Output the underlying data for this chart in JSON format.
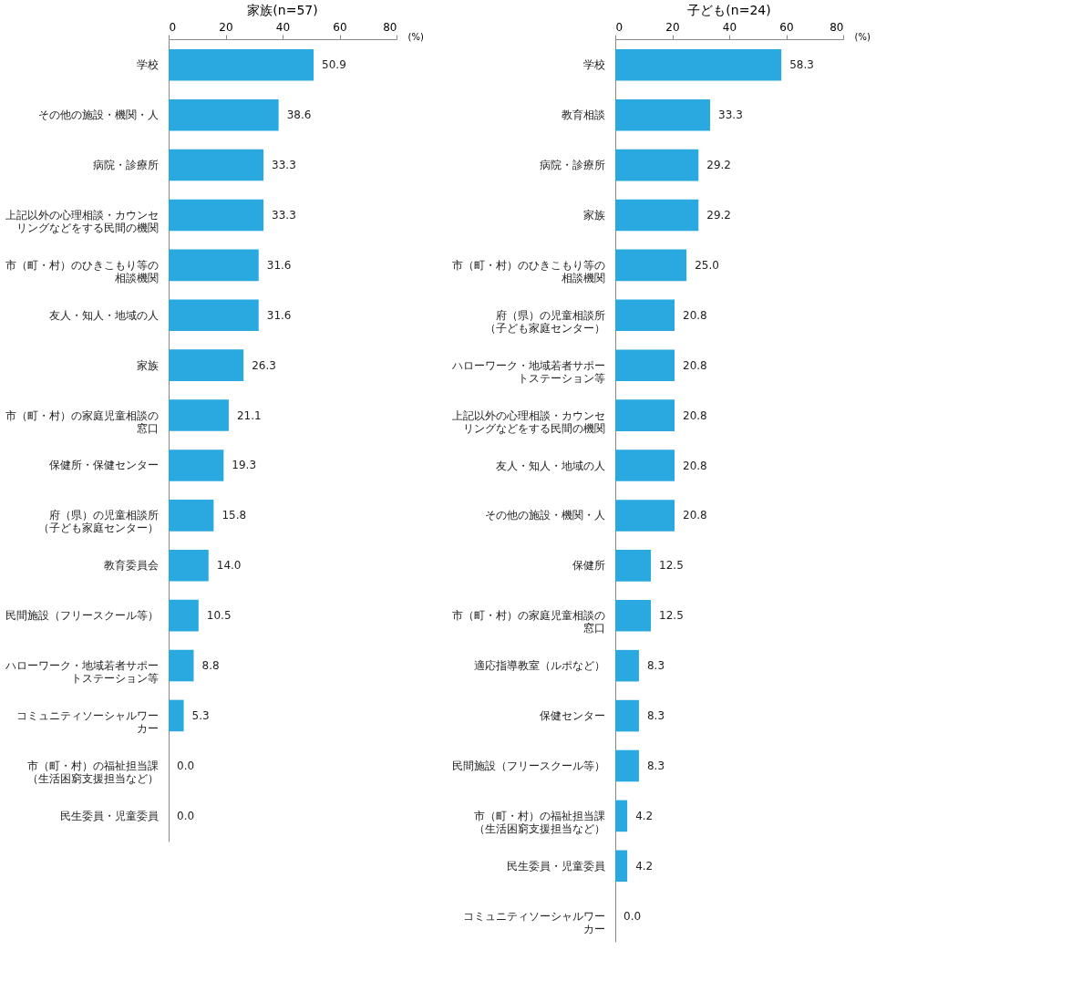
{
  "chart_data": [
    {
      "type": "bar",
      "orientation": "horizontal",
      "title": "家族(n=57)",
      "xlabel": "(%)",
      "xlim": [
        0,
        80
      ],
      "xticks": [
        0,
        20,
        40,
        60,
        80
      ],
      "grid": false,
      "categories": [
        "学校",
        "その他の施設・機関・人",
        "病院・診療所",
        "上記以外の心理相談・カウンセリングなどをする民間の機関",
        "市（町・村）のひきこもり等の相談機関",
        "友人・知人・地域の人",
        "家族",
        "市（町・村）の家庭児童相談の窓口",
        "保健所・保健センター",
        "府（県）の児童相談所（子ども家庭センター）",
        "教育委員会",
        "民間施設（フリースクール等）",
        "ハローワーク・地域若者サポートステーション等",
        "コミュニティソーシャルワーカー",
        "市（町・村）の福祉担当課（生活困窮支援担当など）",
        "民生委員・児童委員"
      ],
      "values": [
        50.9,
        38.6,
        33.3,
        33.3,
        31.6,
        31.6,
        26.3,
        21.1,
        19.3,
        15.8,
        14.0,
        10.5,
        8.8,
        5.3,
        0.0,
        0.0
      ],
      "value_labels": [
        "50.9",
        "38.6",
        "33.3",
        "33.3",
        "31.6",
        "31.6",
        "26.3",
        "21.1",
        "19.3",
        "15.8",
        "14.0",
        "10.5",
        "8.8",
        "5.3",
        "0.0",
        "0.0"
      ],
      "color": "#29a9e0"
    },
    {
      "type": "bar",
      "orientation": "horizontal",
      "title": "子ども(n=24)",
      "xlabel": "(%)",
      "xlim": [
        0,
        80
      ],
      "xticks": [
        0,
        20,
        40,
        60,
        80
      ],
      "grid": false,
      "categories": [
        "学校",
        "教育相談",
        "病院・診療所",
        "家族",
        "市（町・村）のひきこもり等の相談機関",
        "府（県）の児童相談所（子ども家庭センター）",
        "ハローワーク・地域若者サポートステーション等",
        "上記以外の心理相談・カウンセリングなどをする民間の機関",
        "友人・知人・地域の人",
        "その他の施設・機関・人",
        "保健所",
        "市（町・村）の家庭児童相談の窓口",
        "適応指導教室（ルポなど）",
        "保健センター",
        "民間施設（フリースクール等）",
        "市（町・村）の福祉担当課（生活困窮支援担当など）",
        "民生委員・児童委員",
        "コミュニティソーシャルワーカー"
      ],
      "values": [
        58.3,
        33.3,
        29.2,
        29.2,
        25.0,
        20.8,
        20.8,
        20.8,
        20.8,
        20.8,
        12.5,
        12.5,
        8.3,
        8.3,
        8.3,
        4.2,
        4.2,
        0.0
      ],
      "value_labels": [
        "58.3",
        "33.3",
        "29.2",
        "29.2",
        "25.0",
        "20.8",
        "20.8",
        "20.8",
        "20.8",
        "20.8",
        "12.5",
        "12.5",
        "8.3",
        "8.3",
        "8.3",
        "4.2",
        "4.2",
        "0.0"
      ],
      "color": "#29a9e0"
    }
  ]
}
